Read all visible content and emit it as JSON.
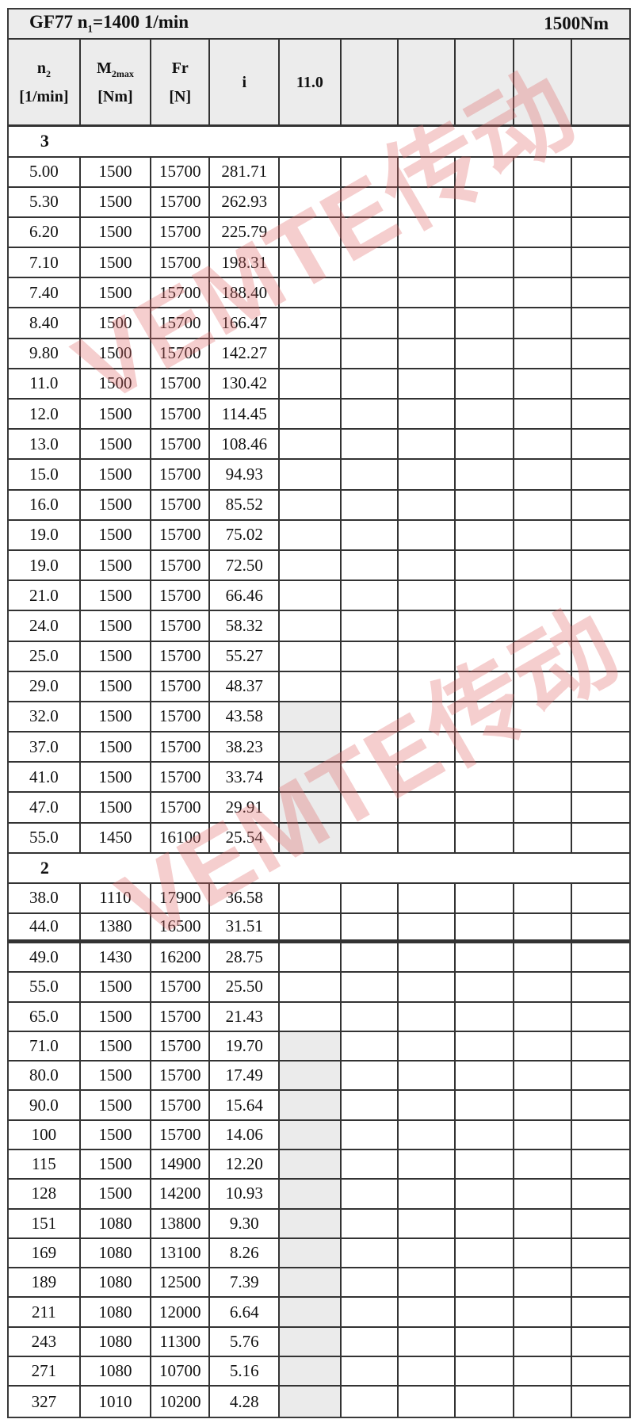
{
  "title": {
    "left_prefix": "GF77 n",
    "left_sub": "1",
    "left_suffix": "=1400 1/min",
    "right": "1500Nm"
  },
  "header": {
    "cols": [
      {
        "main": "n",
        "sub": "2",
        "unit": "[1/min]"
      },
      {
        "main": "M",
        "sub": "2max",
        "unit": "[Nm]"
      },
      {
        "main": "Fr",
        "sub": "",
        "unit": "[N]"
      },
      {
        "main": "i",
        "sub": "",
        "unit": ""
      },
      {
        "main": "11.0",
        "sub": "",
        "unit": ""
      },
      {
        "main": "",
        "sub": "",
        "unit": ""
      },
      {
        "main": "",
        "sub": "",
        "unit": ""
      },
      {
        "main": "",
        "sub": "",
        "unit": ""
      },
      {
        "main": "",
        "sub": "",
        "unit": ""
      },
      {
        "main": "",
        "sub": "",
        "unit": ""
      }
    ]
  },
  "sections": [
    {
      "label": "3",
      "rows": [
        {
          "n2": "5.00",
          "m2max": "1500",
          "fr": "15700",
          "i": "281.71",
          "ratio_shaded": false,
          "divider_after": false
        },
        {
          "n2": "5.30",
          "m2max": "1500",
          "fr": "15700",
          "i": "262.93",
          "ratio_shaded": false,
          "divider_after": false
        },
        {
          "n2": "6.20",
          "m2max": "1500",
          "fr": "15700",
          "i": "225.79",
          "ratio_shaded": false,
          "divider_after": false
        },
        {
          "n2": "7.10",
          "m2max": "1500",
          "fr": "15700",
          "i": "198.31",
          "ratio_shaded": false,
          "divider_after": false
        },
        {
          "n2": "7.40",
          "m2max": "1500",
          "fr": "15700",
          "i": "188.40",
          "ratio_shaded": false,
          "divider_after": false
        },
        {
          "n2": "8.40",
          "m2max": "1500",
          "fr": "15700",
          "i": "166.47",
          "ratio_shaded": false,
          "divider_after": false
        },
        {
          "n2": "9.80",
          "m2max": "1500",
          "fr": "15700",
          "i": "142.27",
          "ratio_shaded": false,
          "divider_after": false
        },
        {
          "n2": "11.0",
          "m2max": "1500",
          "fr": "15700",
          "i": "130.42",
          "ratio_shaded": false,
          "divider_after": false
        },
        {
          "n2": "12.0",
          "m2max": "1500",
          "fr": "15700",
          "i": "114.45",
          "ratio_shaded": false,
          "divider_after": false
        },
        {
          "n2": "13.0",
          "m2max": "1500",
          "fr": "15700",
          "i": "108.46",
          "ratio_shaded": false,
          "divider_after": false
        },
        {
          "n2": "15.0",
          "m2max": "1500",
          "fr": "15700",
          "i": "94.93",
          "ratio_shaded": false,
          "divider_after": false
        },
        {
          "n2": "16.0",
          "m2max": "1500",
          "fr": "15700",
          "i": "85.52",
          "ratio_shaded": false,
          "divider_after": false
        },
        {
          "n2": "19.0",
          "m2max": "1500",
          "fr": "15700",
          "i": "75.02",
          "ratio_shaded": false,
          "divider_after": false
        },
        {
          "n2": "19.0",
          "m2max": "1500",
          "fr": "15700",
          "i": "72.50",
          "ratio_shaded": false,
          "divider_after": false
        },
        {
          "n2": "21.0",
          "m2max": "1500",
          "fr": "15700",
          "i": "66.46",
          "ratio_shaded": false,
          "divider_after": false
        },
        {
          "n2": "24.0",
          "m2max": "1500",
          "fr": "15700",
          "i": "58.32",
          "ratio_shaded": false,
          "divider_after": false
        },
        {
          "n2": "25.0",
          "m2max": "1500",
          "fr": "15700",
          "i": "55.27",
          "ratio_shaded": false,
          "divider_after": false
        },
        {
          "n2": "29.0",
          "m2max": "1500",
          "fr": "15700",
          "i": "48.37",
          "ratio_shaded": false,
          "divider_after": false
        },
        {
          "n2": "32.0",
          "m2max": "1500",
          "fr": "15700",
          "i": "43.58",
          "ratio_shaded": true,
          "divider_after": false
        },
        {
          "n2": "37.0",
          "m2max": "1500",
          "fr": "15700",
          "i": "38.23",
          "ratio_shaded": true,
          "divider_after": false
        },
        {
          "n2": "41.0",
          "m2max": "1500",
          "fr": "15700",
          "i": "33.74",
          "ratio_shaded": true,
          "divider_after": false
        },
        {
          "n2": "47.0",
          "m2max": "1500",
          "fr": "15700",
          "i": "29.91",
          "ratio_shaded": true,
          "divider_after": false
        },
        {
          "n2": "55.0",
          "m2max": "1450",
          "fr": "16100",
          "i": "25.54",
          "ratio_shaded": true,
          "divider_after": false
        }
      ]
    },
    {
      "label": "2",
      "rows": [
        {
          "n2": "38.0",
          "m2max": "1110",
          "fr": "17900",
          "i": "36.58",
          "ratio_shaded": false,
          "divider_after": false
        },
        {
          "n2": "44.0",
          "m2max": "1380",
          "fr": "16500",
          "i": "31.51",
          "ratio_shaded": false,
          "divider_after": true
        },
        {
          "n2": "49.0",
          "m2max": "1430",
          "fr": "16200",
          "i": "28.75",
          "ratio_shaded": false,
          "divider_after": false
        },
        {
          "n2": "55.0",
          "m2max": "1500",
          "fr": "15700",
          "i": "25.50",
          "ratio_shaded": false,
          "divider_after": false
        },
        {
          "n2": "65.0",
          "m2max": "1500",
          "fr": "15700",
          "i": "21.43",
          "ratio_shaded": false,
          "divider_after": false
        },
        {
          "n2": "71.0",
          "m2max": "1500",
          "fr": "15700",
          "i": "19.70",
          "ratio_shaded": true,
          "divider_after": false
        },
        {
          "n2": "80.0",
          "m2max": "1500",
          "fr": "15700",
          "i": "17.49",
          "ratio_shaded": true,
          "divider_after": false
        },
        {
          "n2": "90.0",
          "m2max": "1500",
          "fr": "15700",
          "i": "15.64",
          "ratio_shaded": true,
          "divider_after": false
        },
        {
          "n2": "100",
          "m2max": "1500",
          "fr": "15700",
          "i": "14.06",
          "ratio_shaded": true,
          "divider_after": false
        },
        {
          "n2": "115",
          "m2max": "1500",
          "fr": "14900",
          "i": "12.20",
          "ratio_shaded": true,
          "divider_after": false
        },
        {
          "n2": "128",
          "m2max": "1500",
          "fr": "14200",
          "i": "10.93",
          "ratio_shaded": true,
          "divider_after": false
        },
        {
          "n2": "151",
          "m2max": "1080",
          "fr": "13800",
          "i": "9.30",
          "ratio_shaded": true,
          "divider_after": false
        },
        {
          "n2": "169",
          "m2max": "1080",
          "fr": "13100",
          "i": "8.26",
          "ratio_shaded": true,
          "divider_after": false
        },
        {
          "n2": "189",
          "m2max": "1080",
          "fr": "12500",
          "i": "7.39",
          "ratio_shaded": true,
          "divider_after": false
        },
        {
          "n2": "211",
          "m2max": "1080",
          "fr": "12000",
          "i": "6.64",
          "ratio_shaded": true,
          "divider_after": false
        },
        {
          "n2": "243",
          "m2max": "1080",
          "fr": "11300",
          "i": "5.76",
          "ratio_shaded": true,
          "divider_after": false
        },
        {
          "n2": "271",
          "m2max": "1080",
          "fr": "10700",
          "i": "5.16",
          "ratio_shaded": true,
          "divider_after": false
        },
        {
          "n2": "327",
          "m2max": "1010",
          "fr": "10200",
          "i": "4.28",
          "ratio_shaded": true,
          "divider_after": false
        }
      ]
    }
  ],
  "watermark": {
    "text": "VEMTE传动",
    "color": "rgba(224,106,106,0.33)"
  },
  "colors": {
    "header_bg": "#ececec",
    "shaded_cell_bg": "#ebebeb",
    "grid_line": "#333333"
  }
}
